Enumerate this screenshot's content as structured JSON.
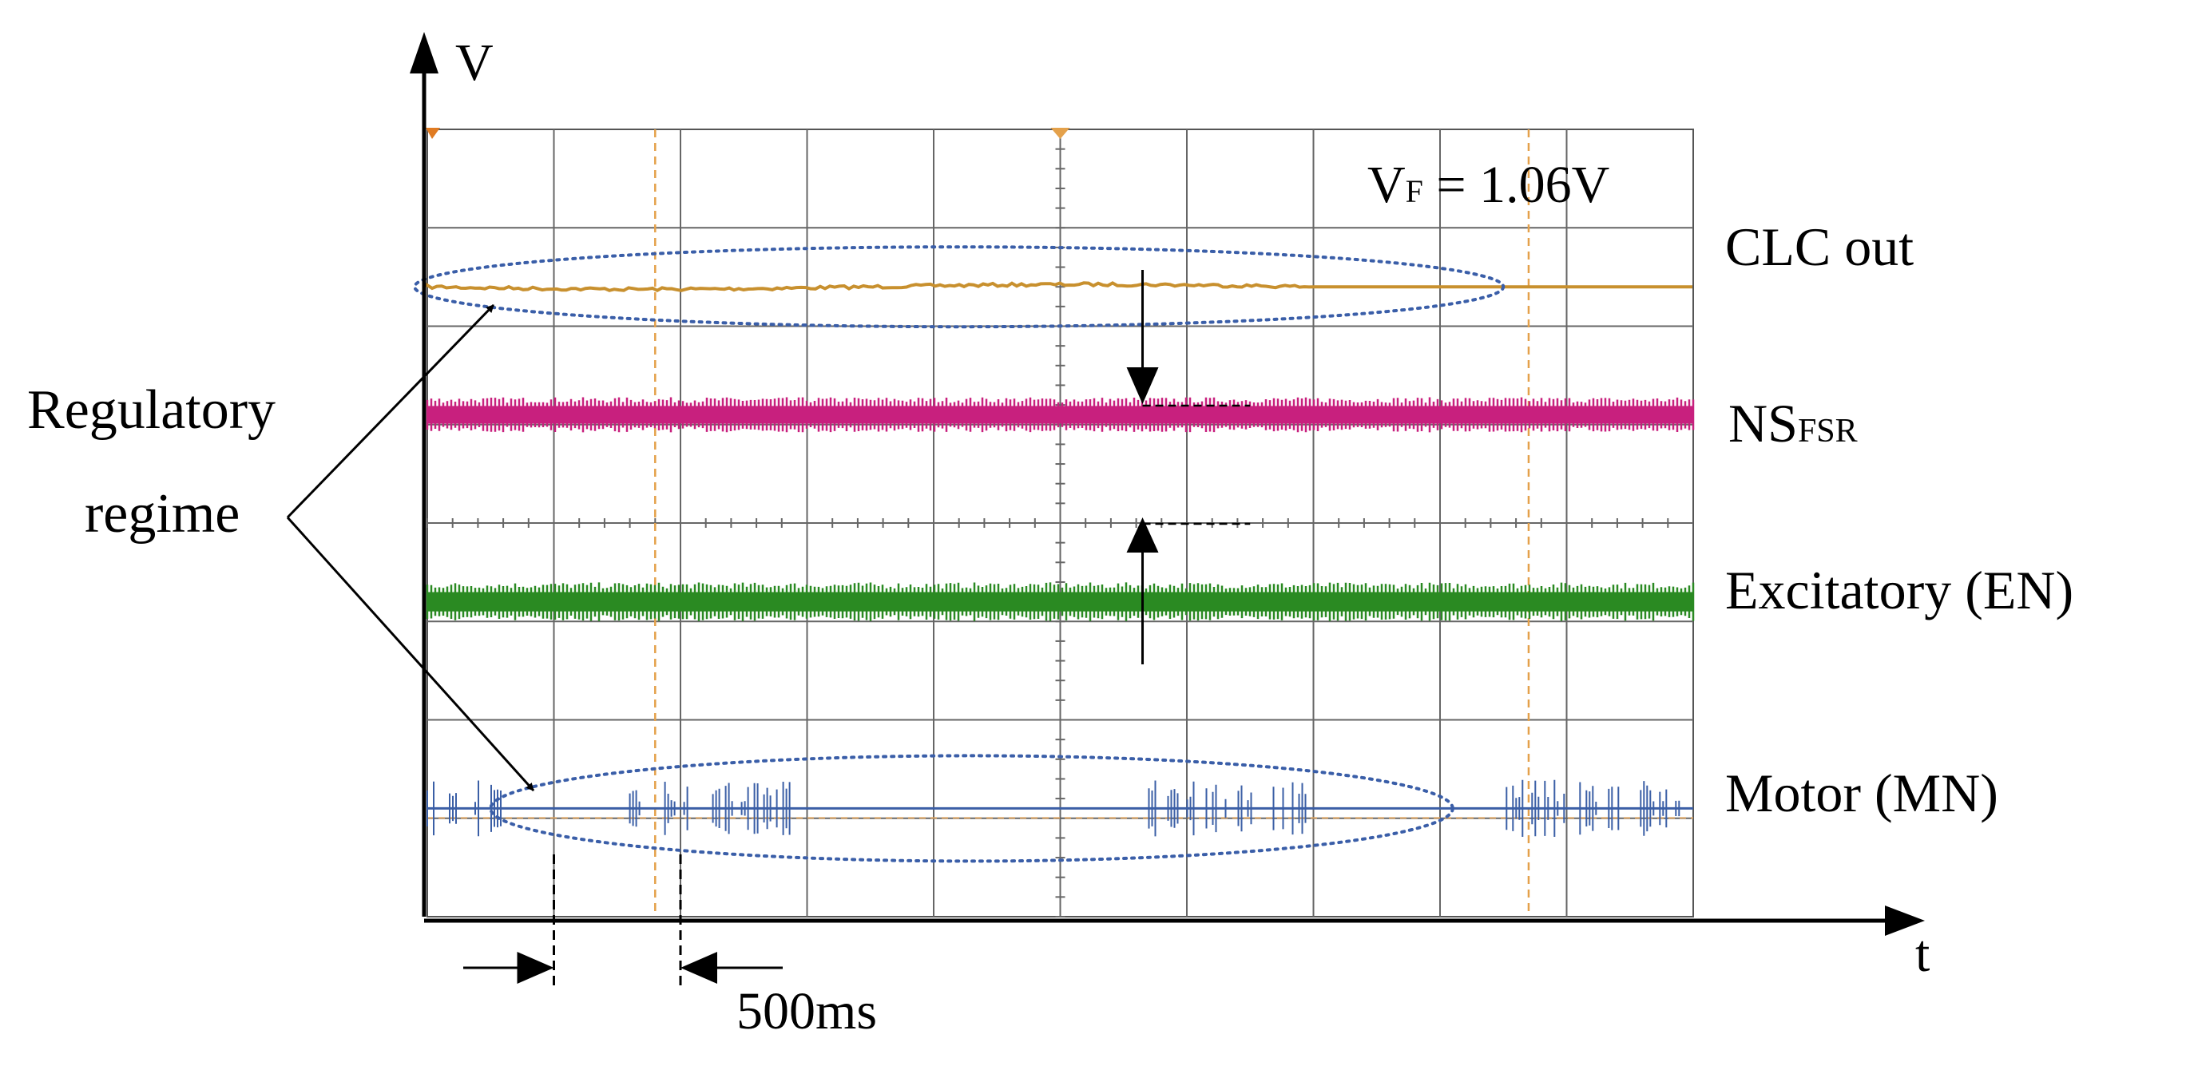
{
  "chart_data": {
    "type": "line",
    "title": "",
    "axes": {
      "y_label": "V",
      "x_label": "t"
    },
    "grid": true,
    "divisions": {
      "x": 10,
      "y": 8
    },
    "annotation_vf": {
      "prefix": "V",
      "subscript": "F",
      "value": " = 1.06V"
    },
    "annotation_time": {
      "label": "500ms",
      "interval_divisions": 1
    },
    "annotation_regime": {
      "line1": "Regulatory",
      "line2": "regime"
    },
    "series": [
      {
        "name": "CLC out",
        "name_main": "CLC out",
        "name_sub": "",
        "color": "#c8902e",
        "baseline_div": 1.6,
        "kind": "analog"
      },
      {
        "name": "NS_FSR",
        "name_main": "NS",
        "name_sub": "FSR",
        "color": "#c8207e",
        "baseline_div": 2.9,
        "kind": "spike-band"
      },
      {
        "name": "Excitatory (EN)",
        "name_main": "Excitatory (EN)",
        "name_sub": "",
        "color": "#2a8a22",
        "baseline_div": 4.8,
        "kind": "spike-band"
      },
      {
        "name": "Motor (MN)",
        "name_main": "Motor (MN)",
        "name_sub": "",
        "color": "#3b5fa6",
        "baseline_div": 6.9,
        "kind": "burst"
      }
    ],
    "motor_bursts_div": [
      [
        0.0,
        0.6
      ],
      [
        1.6,
        2.9
      ],
      [
        5.7,
        7.0
      ],
      [
        8.5,
        9.9
      ]
    ]
  }
}
